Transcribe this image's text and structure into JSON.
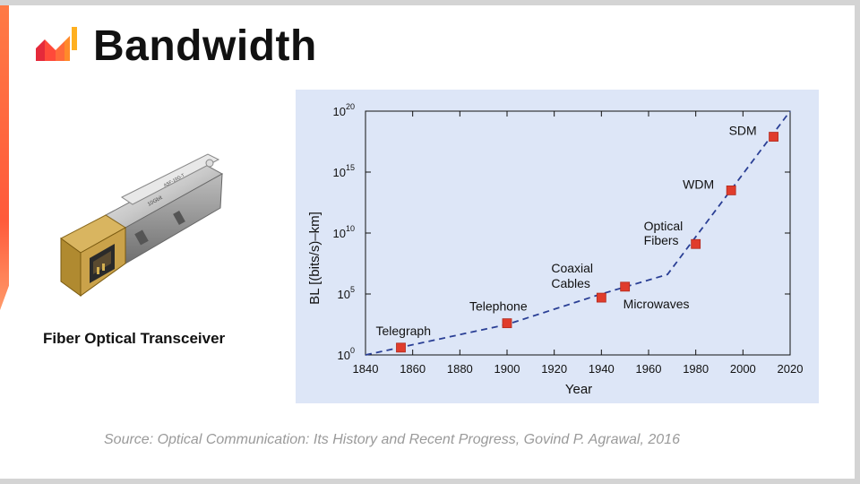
{
  "slide": {
    "title": "Bandwidth",
    "caption": "Fiber Optical Transceiver",
    "source": "Source: Optical Communication: Its History and Recent Progress, Govind P. Agrawal, 2016",
    "accent_color": "#ff6a45",
    "logo_icon": "brand-logo-icon",
    "device_icon": "sfp-transceiver-icon",
    "device_label_text": "10Gbit",
    "device_label_text2": "ASF-10G-T"
  },
  "chart_data": {
    "type": "scatter",
    "title": "",
    "xlabel": "Year",
    "ylabel": "BL [(bits/s)–km]",
    "xlim": [
      1840,
      2020
    ],
    "ylim_exponent": [
      0,
      20
    ],
    "yscale": "log10",
    "xticks": [
      "1840",
      "1860",
      "1880",
      "1900",
      "1920",
      "1940",
      "1960",
      "1980",
      "2000",
      "2020"
    ],
    "ytick_base": "10",
    "yticks": [
      {
        "base": "10",
        "exp": "0"
      },
      {
        "base": "10",
        "exp": "5"
      },
      {
        "base": "10",
        "exp": "10"
      },
      {
        "base": "10",
        "exp": "15"
      },
      {
        "base": "10",
        "exp": "20"
      }
    ],
    "points": [
      {
        "label": "Telegraph",
        "year": 1855,
        "log_bl": 0.6
      },
      {
        "label": "Telephone",
        "year": 1900,
        "log_bl": 2.6
      },
      {
        "label": "Coaxial Cables",
        "year": 1940,
        "log_bl": 4.7
      },
      {
        "label": "Microwaves",
        "year": 1950,
        "log_bl": 5.6
      },
      {
        "label": "Optical Fibers",
        "year": 1980,
        "log_bl": 9.1
      },
      {
        "label": "WDM",
        "year": 1995,
        "log_bl": 13.5
      },
      {
        "label": "SDM",
        "year": 2013,
        "log_bl": 17.9
      }
    ],
    "trend": [
      {
        "year": 1840,
        "log_bl": 0
      },
      {
        "year": 1900,
        "log_bl": 2.5
      },
      {
        "year": 1940,
        "log_bl": 5.0
      },
      {
        "year": 1968,
        "log_bl": 6.6
      },
      {
        "year": 2020,
        "log_bl": 20.0
      }
    ],
    "colors": {
      "plot_bg": "#dde6f7",
      "marker": "#e03c2c",
      "trend": "#2a3f95",
      "axis": "#111111"
    }
  }
}
